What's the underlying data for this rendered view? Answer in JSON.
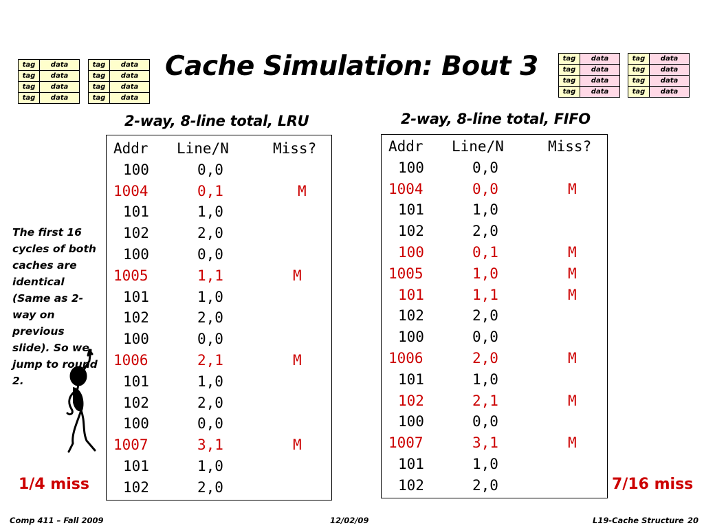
{
  "slide": {
    "title": "Cache Simulation: Bout 3",
    "note": "The first 16 cycles of both caches are identical (Same as 2-way on previous slide). So we jump to round 2.",
    "footer_left": "Comp 411 – Fall 2009",
    "footer_center": "12/02/09",
    "footer_right": "L19-Cache Structure",
    "page_number": "20"
  },
  "cache_diagram": {
    "tag": "tag",
    "data": "data",
    "rows": 4,
    "colors": {
      "tag": "#ffffcc",
      "data_yellow": "#ffffcc",
      "data_pink": "#ffd9e6"
    }
  },
  "lru": {
    "subtitle": "2-way, 8-line total, LRU",
    "headers": [
      "Addr",
      "Line/N",
      "Miss?"
    ],
    "rows": [
      {
        "addr": "100",
        "line": "0,0",
        "miss": "",
        "hit": false
      },
      {
        "addr": "1004",
        "line": "0,1",
        "miss": "M",
        "hit": true
      },
      {
        "addr": "101",
        "line": "1,0",
        "miss": "",
        "hit": false
      },
      {
        "addr": "102",
        "line": "2,0",
        "miss": "",
        "hit": false
      },
      {
        "addr": "100",
        "line": "0,0",
        "miss": "",
        "hit": false
      },
      {
        "addr": "1005",
        "line": "1,1",
        "miss": "M",
        "hit": true
      },
      {
        "addr": "101",
        "line": "1,0",
        "miss": "",
        "hit": false
      },
      {
        "addr": "102",
        "line": "2,0",
        "miss": "",
        "hit": false
      },
      {
        "addr": "100",
        "line": "0,0",
        "miss": "",
        "hit": false
      },
      {
        "addr": "1006",
        "line": "2,1",
        "miss": "M",
        "hit": true
      },
      {
        "addr": "101",
        "line": "1,0",
        "miss": "",
        "hit": false
      },
      {
        "addr": "102",
        "line": "2,0",
        "miss": "",
        "hit": false
      },
      {
        "addr": "100",
        "line": "0,0",
        "miss": "",
        "hit": false
      },
      {
        "addr": "1007",
        "line": "3,1",
        "miss": "M",
        "hit": true
      },
      {
        "addr": "101",
        "line": "1,0",
        "miss": "",
        "hit": false
      },
      {
        "addr": "102",
        "line": "2,0",
        "miss": "",
        "hit": false
      }
    ],
    "result": "1/4 miss"
  },
  "fifo": {
    "subtitle": "2-way, 8-line total, FIFO",
    "headers": [
      "Addr",
      "Line/N",
      "Miss?"
    ],
    "rows": [
      {
        "addr": "100",
        "line": "0,0",
        "miss": "",
        "hit": false
      },
      {
        "addr": "1004",
        "line": "0,0",
        "miss": "M",
        "hit": true
      },
      {
        "addr": "101",
        "line": "1,0",
        "miss": "",
        "hit": false
      },
      {
        "addr": "102",
        "line": "2,0",
        "miss": "",
        "hit": false
      },
      {
        "addr": "100",
        "line": "0,1",
        "miss": "M",
        "hit": true
      },
      {
        "addr": "1005",
        "line": "1,0",
        "miss": "M",
        "hit": true
      },
      {
        "addr": "101",
        "line": "1,1",
        "miss": "M",
        "hit": true
      },
      {
        "addr": "102",
        "line": "2,0",
        "miss": "",
        "hit": false
      },
      {
        "addr": "100",
        "line": "0,0",
        "miss": "",
        "hit": false
      },
      {
        "addr": "1006",
        "line": "2,0",
        "miss": "M",
        "hit": true
      },
      {
        "addr": "101",
        "line": "1,0",
        "miss": "",
        "hit": false
      },
      {
        "addr": "102",
        "line": "2,1",
        "miss": "M",
        "hit": true
      },
      {
        "addr": "100",
        "line": "0,0",
        "miss": "",
        "hit": false
      },
      {
        "addr": "1007",
        "line": "3,1",
        "miss": "M",
        "hit": true
      },
      {
        "addr": "101",
        "line": "1,0",
        "miss": "",
        "hit": false
      },
      {
        "addr": "102",
        "line": "2,0",
        "miss": "",
        "hit": false
      }
    ],
    "result": "7/16 miss"
  },
  "colors": {
    "miss_red": "#cc0000"
  }
}
